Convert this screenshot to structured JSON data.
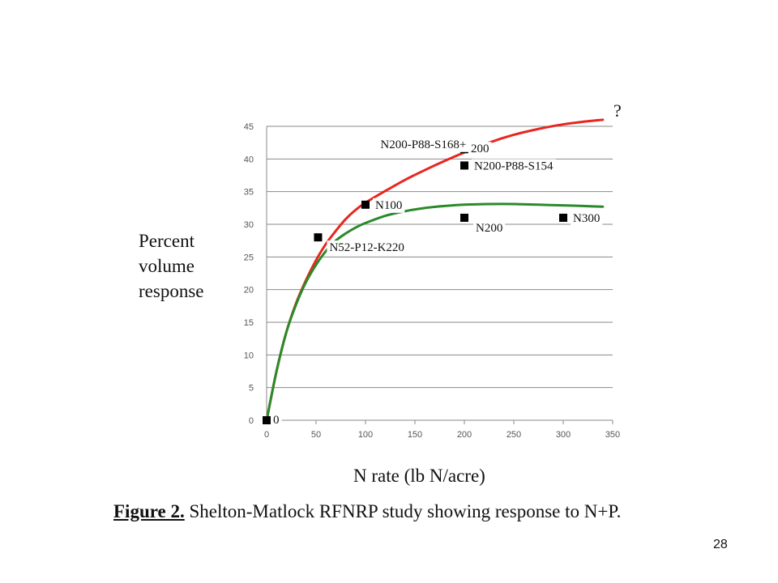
{
  "chart_data": {
    "type": "line",
    "ylabel": "Percent volume response",
    "xlabel": "N rate (lb N/acre)",
    "xlim": [
      0,
      350
    ],
    "ylim": [
      0,
      45
    ],
    "x_ticks": [
      0,
      50,
      100,
      150,
      200,
      250,
      300,
      350
    ],
    "y_ticks": [
      0,
      5,
      10,
      15,
      20,
      25,
      30,
      35,
      40,
      45
    ],
    "grid": "horizontal",
    "series": [
      {
        "color": "#e8261f",
        "x": [
          0,
          10,
          20,
          30,
          40,
          50,
          60,
          70,
          80,
          90,
          100,
          120,
          140,
          160,
          180,
          200,
          225,
          250,
          275,
          300,
          320,
          340
        ],
        "y": [
          0,
          7.5,
          13.5,
          18,
          21.5,
          24.5,
          27,
          29,
          30.8,
          32.2,
          33.3,
          35.1,
          36.8,
          38.3,
          39.7,
          41,
          42.5,
          43.7,
          44.6,
          45.3,
          45.7,
          46.0
        ]
      },
      {
        "color": "#2a8a2a",
        "x": [
          0,
          10,
          20,
          30,
          40,
          50,
          60,
          70,
          80,
          90,
          100,
          120,
          140,
          160,
          180,
          200,
          225,
          250,
          275,
          300,
          320,
          340
        ],
        "y": [
          0,
          7.5,
          13.5,
          17.8,
          21.2,
          23.8,
          25.9,
          27.5,
          28.6,
          29.5,
          30.2,
          31.3,
          32.0,
          32.5,
          32.8,
          33.0,
          33.1,
          33.1,
          33.0,
          32.9,
          32.8,
          32.7
        ]
      }
    ],
    "points": [
      {
        "x": 0,
        "y": 0,
        "label": "0",
        "label_pos": "right-small",
        "color": "#000000"
      },
      {
        "x": 52,
        "y": 28,
        "label": "N52-P12-K220",
        "label_pos": "below-right",
        "color": "#000000"
      },
      {
        "x": 100,
        "y": 33,
        "label": "N100",
        "label_pos": "right",
        "color": "#000000"
      },
      {
        "x": 200,
        "y": 41.5,
        "label": "200",
        "label_pos": "right-small",
        "color": "#000000"
      },
      {
        "x": 200,
        "y": 39,
        "label": "N200-P88-S154",
        "label_pos": "right",
        "color": "#000000"
      },
      {
        "x": 200,
        "y": 31,
        "label": "N200",
        "label_pos": "below-right",
        "color": "#000000"
      },
      {
        "x": 300,
        "y": 31,
        "label": "N300",
        "label_pos": "right",
        "color": "#000000"
      }
    ],
    "annotations": [
      {
        "text": "N200-P88-S168+",
        "x": 120,
        "y": 42.3
      }
    ]
  },
  "right_annotation": "?",
  "caption": {
    "figure": "Figure 2.",
    "text": " Shelton-Matlock RFNRP study showing response to N+P."
  },
  "page_number": "28"
}
